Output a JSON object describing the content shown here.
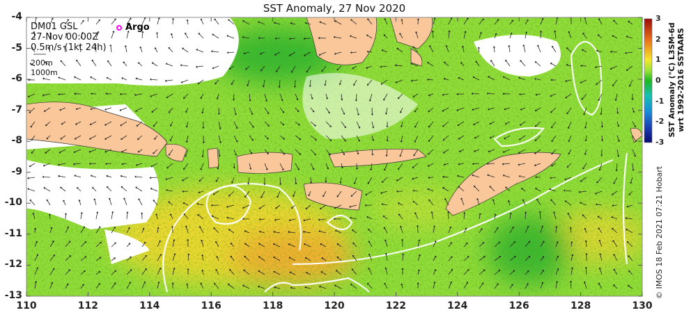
{
  "title": "SST Anomaly, 27 Nov 2020",
  "legend": {
    "line1": "DM01 GSL",
    "line2": "27-Nov 00:00Z",
    "line3": "0.5m/s (1kt 24h)",
    "depth1": "200m",
    "depth2": "1000m",
    "argo": "Argo"
  },
  "y_ticks": [
    "-4",
    "-5",
    "-6",
    "-7",
    "-8",
    "-9",
    "-10",
    "-11",
    "-12",
    "-13"
  ],
  "x_ticks": [
    "110",
    "112",
    "114",
    "116",
    "118",
    "120",
    "122",
    "124",
    "126",
    "128",
    "130"
  ],
  "colorbar": {
    "ticks": [
      "3",
      "2",
      "1",
      "0",
      "-1",
      "-2",
      "-3"
    ],
    "label_line1": "SST Anomaly (°C) L3SM-6d",
    "label_line2": "wrt 1992-2016 SSTAARS"
  },
  "credit": "© IMOS 18 Feb 2021 07:21 Hobart",
  "colors": {
    "land": "#f9c79a",
    "argo": "#ff00ff",
    "base": "#8fdc3a"
  }
}
